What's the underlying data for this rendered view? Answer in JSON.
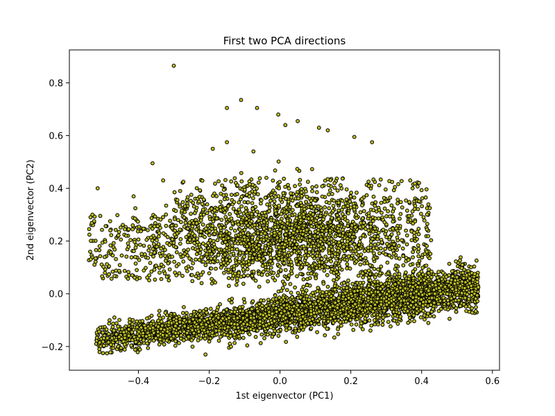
{
  "chart_data": {
    "type": "scatter",
    "title": "First two PCA directions",
    "xlabel": "1st eigenvector (PC1)",
    "ylabel": "2nd eigenvector (PC2)",
    "xlim": [
      -0.595,
      0.62
    ],
    "ylim": [
      -0.29,
      0.925
    ],
    "xticks": [
      -0.4,
      -0.2,
      0.0,
      0.2,
      0.4,
      0.6
    ],
    "yticks": [
      -0.2,
      0.0,
      0.2,
      0.4,
      0.6,
      0.8
    ],
    "xtick_labels": [
      "−0.4",
      "−0.2",
      "0.0",
      "0.2",
      "0.4",
      "0.6"
    ],
    "ytick_labels": [
      "−0.2",
      "0.0",
      "0.2",
      "0.4",
      "0.6",
      "0.8"
    ],
    "grid": false,
    "legend": false,
    "marker": {
      "fill": "#bcbd22",
      "edge": "#000000"
    },
    "clusters": [
      {
        "shape": "band",
        "count": 3800,
        "x_range": [
          -0.52,
          0.56
        ],
        "center_line": {
          "y_at_x_min": -0.175,
          "y_at_x_max": 0.03
        },
        "spread": 0.045
      },
      {
        "shape": "blob",
        "count": 2400,
        "x_range": [
          -0.54,
          0.43
        ],
        "y_range": [
          0.02,
          0.55
        ]
      }
    ],
    "outliers": [
      {
        "x": -0.3,
        "y": 0.865
      },
      {
        "x": -0.15,
        "y": 0.705
      },
      {
        "x": -0.11,
        "y": 0.735
      },
      {
        "x": -0.065,
        "y": 0.705
      },
      {
        "x": -0.005,
        "y": 0.68
      },
      {
        "x": 0.015,
        "y": 0.64
      },
      {
        "x": 0.05,
        "y": 0.655
      },
      {
        "x": 0.11,
        "y": 0.63
      },
      {
        "x": 0.135,
        "y": 0.62
      },
      {
        "x": -0.515,
        "y": 0.4
      },
      {
        "x": -0.53,
        "y": 0.3
      },
      {
        "x": -0.36,
        "y": 0.495
      },
      {
        "x": -0.33,
        "y": 0.43
      },
      {
        "x": -0.19,
        "y": 0.55
      },
      {
        "x": -0.15,
        "y": 0.575
      },
      {
        "x": -0.075,
        "y": 0.54
      },
      {
        "x": 0.21,
        "y": 0.595
      },
      {
        "x": 0.26,
        "y": 0.575
      },
      {
        "x": 0.54,
        "y": 0.03
      },
      {
        "x": 0.55,
        "y": 0.075
      },
      {
        "x": 0.515,
        "y": 0.11
      },
      {
        "x": -0.5,
        "y": -0.225
      },
      {
        "x": 0.56,
        "y": 0.025
      }
    ]
  }
}
